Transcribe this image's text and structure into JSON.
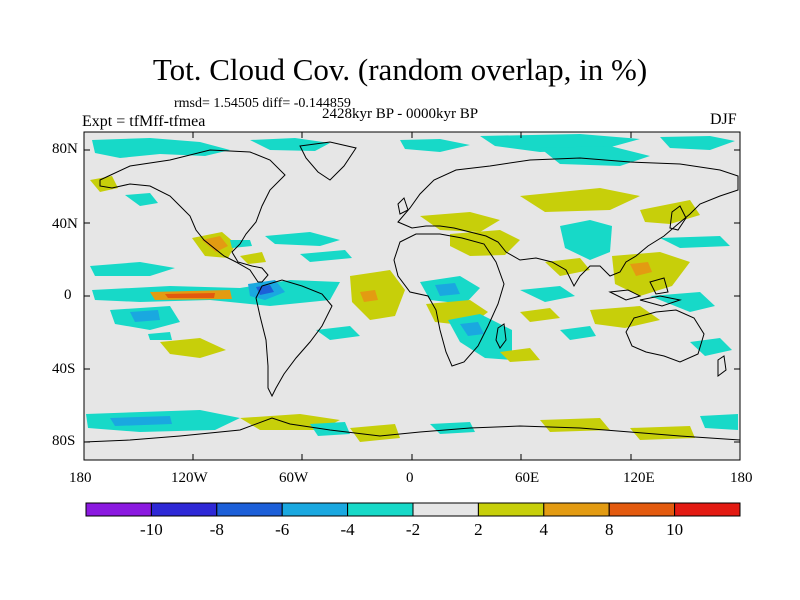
{
  "title": "Tot. Cloud Cov. (random overlap, in %)",
  "stats": "rmsd= 1.54505 diff= -0.144859",
  "period": "2428kyr BP - 0000kyr BP",
  "experiment": "Expt = tfMff-tfmea",
  "season": "DJF",
  "lat_ticks": [
    "80N",
    "40N",
    "0",
    "40S",
    "80S"
  ],
  "lon_ticks": [
    "180",
    "120W",
    "60W",
    "0",
    "60E",
    "120E",
    "180"
  ],
  "colorbar": {
    "labels": [
      "-10",
      "-8",
      "-6",
      "-4",
      "-2",
      "2",
      "4",
      "8",
      "10"
    ],
    "colors": [
      "#8b19e0",
      "#2e28d6",
      "#1c5fd8",
      "#1aa8e0",
      "#17d9c8",
      "#e6e6e6",
      "#c7cf0a",
      "#e39b12",
      "#e35a0e",
      "#e31a12"
    ]
  },
  "palette": {
    "background": "#e6e6e6",
    "cyan": "#17d9c8",
    "blue": "#1aa8e0",
    "yellow": "#c7cf0a",
    "orange": "#e39b12",
    "red": "#e35a0e"
  }
}
